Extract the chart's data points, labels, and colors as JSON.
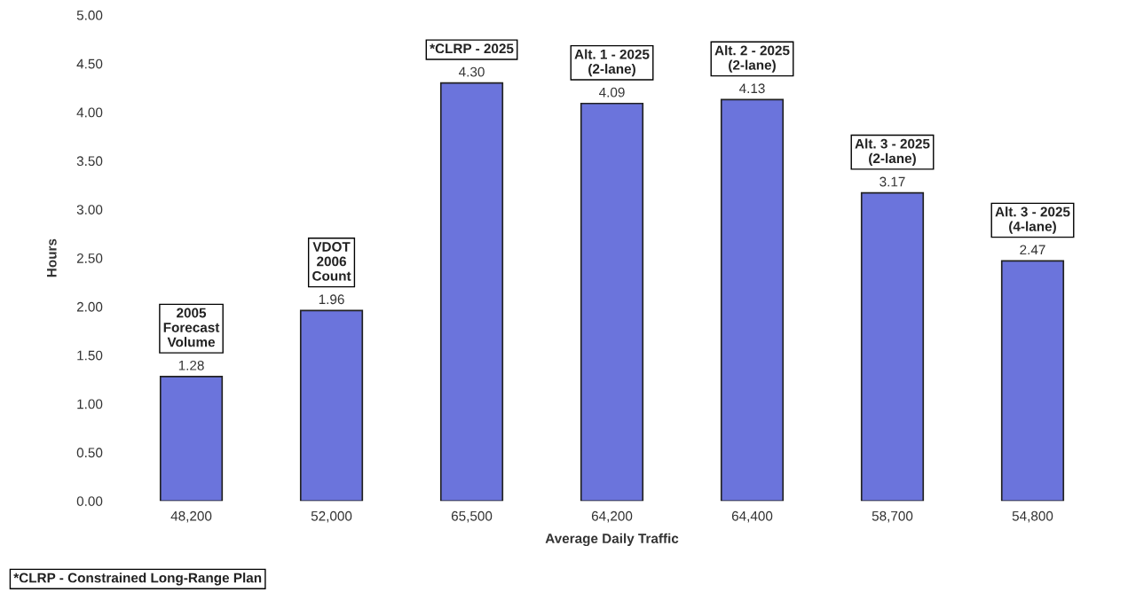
{
  "chart_data": {
    "type": "bar",
    "xlabel": "Average Daily Traffic",
    "ylabel": "Hours",
    "categories": [
      "48,200",
      "52,000",
      "65,500",
      "64,200",
      "64,400",
      "58,700",
      "54,800"
    ],
    "values": [
      1.28,
      1.96,
      4.3,
      4.09,
      4.13,
      3.17,
      2.47
    ],
    "value_labels": [
      "1.28",
      "1.96",
      "4.30",
      "4.09",
      "4.13",
      "3.17",
      "2.47"
    ],
    "color": "#6b74dc",
    "ylim": [
      0,
      5
    ],
    "yticks": [
      {
        "value": 0,
        "label": "0.00"
      },
      {
        "value": 0.5,
        "label": "0.50"
      },
      {
        "value": 1,
        "label": "1.00"
      },
      {
        "value": 1.5,
        "label": "1.50"
      },
      {
        "value": 2,
        "label": "2.00"
      },
      {
        "value": 2.5,
        "label": "2.50"
      },
      {
        "value": 3,
        "label": "3.00"
      },
      {
        "value": 3.5,
        "label": "3.50"
      },
      {
        "value": 4,
        "label": "4.00"
      },
      {
        "value": 4.5,
        "label": "4.50"
      },
      {
        "value": 5,
        "label": "5.00"
      }
    ],
    "grid": false,
    "legend": false,
    "annotations": [
      {
        "text": "2005\nForecast\nVolume",
        "x": "48,200",
        "y": 1.28
      },
      {
        "text": "VDOT\n2006\nCount",
        "x": "52,000",
        "y": 1.96
      },
      {
        "text": "*CLRP - 2025",
        "x": "65,500",
        "y": 4.3
      },
      {
        "text": "Alt. 1 - 2025\n(2-lane)",
        "x": "64,200",
        "y": 4.09
      },
      {
        "text": "Alt. 2 - 2025\n(2-lane)",
        "x": "64,400",
        "y": 4.13
      },
      {
        "text": "Alt. 3 - 2025\n(2-lane)",
        "x": "58,700",
        "y": 3.17
      },
      {
        "text": "Alt. 3 - 2025\n(4-lane)",
        "x": "54,800",
        "y": 2.47
      },
      "*CLRP - Constrained Long-Range Plan"
    ]
  }
}
